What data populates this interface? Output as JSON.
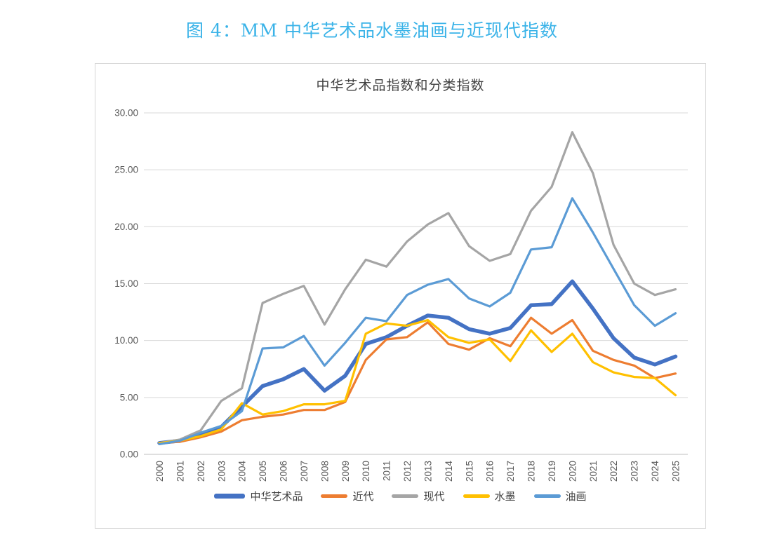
{
  "figure": {
    "caption": "图 4：MM 中华艺术品水墨油画与近现代指数",
    "caption_color": "#3ab3e8"
  },
  "chart": {
    "title": "中华艺术品指数和分类指数",
    "title_color": "#404040",
    "axis_text_color": "#595959",
    "gridline_color": "#d9d9d9",
    "axis_line_color": "#bfbfbf",
    "border_color": "#d6d6d6",
    "background": "#ffffff"
  },
  "chart_data": {
    "type": "line",
    "title": "中华艺术品指数和分类指数",
    "x": [
      "2000",
      "2001",
      "2002",
      "2003",
      "2004",
      "2005",
      "2006",
      "2007",
      "2008",
      "2009",
      "2010",
      "2011",
      "2012",
      "2013",
      "2014",
      "2015",
      "2016",
      "2017",
      "2018",
      "2019",
      "2020",
      "2021",
      "2022",
      "2023",
      "2024",
      "2025"
    ],
    "ylim": [
      0,
      30
    ],
    "ytick_step": 5,
    "ytick_labels": [
      "0.00",
      "5.00",
      "10.00",
      "15.00",
      "20.00",
      "25.00",
      "30.00"
    ],
    "grid": true,
    "legend_position": "bottom",
    "series": [
      {
        "name": "中华艺术品",
        "color": "#4472C4",
        "line_width": 5.5,
        "values": [
          1.0,
          1.2,
          1.8,
          2.4,
          4.2,
          6.0,
          6.6,
          7.5,
          5.6,
          6.9,
          9.7,
          10.3,
          11.3,
          12.2,
          12.0,
          11.0,
          10.6,
          11.1,
          13.1,
          13.2,
          15.2,
          12.8,
          10.2,
          8.5,
          7.9,
          8.6
        ]
      },
      {
        "name": "近代",
        "color": "#ED7D31",
        "line_width": 3.2,
        "values": [
          1.0,
          1.1,
          1.5,
          2.0,
          3.0,
          3.3,
          3.5,
          3.9,
          3.9,
          4.6,
          8.3,
          10.1,
          10.3,
          11.6,
          9.7,
          9.2,
          10.2,
          9.5,
          12.0,
          10.6,
          11.8,
          9.1,
          8.3,
          7.8,
          6.7,
          7.1
        ]
      },
      {
        "name": "现代",
        "color": "#A5A5A5",
        "line_width": 3.2,
        "values": [
          1.0,
          1.3,
          2.1,
          4.7,
          5.8,
          13.3,
          14.1,
          14.8,
          11.4,
          14.5,
          17.1,
          16.5,
          18.7,
          20.2,
          21.2,
          18.3,
          17.0,
          17.6,
          21.4,
          23.5,
          28.3,
          24.7,
          18.4,
          15.0,
          14.0,
          14.5
        ]
      },
      {
        "name": "水墨",
        "color": "#FFC000",
        "line_width": 3.2,
        "values": [
          1.0,
          1.2,
          1.6,
          2.2,
          4.5,
          3.5,
          3.8,
          4.4,
          4.4,
          4.7,
          10.6,
          11.5,
          11.3,
          11.8,
          10.3,
          9.8,
          10.1,
          8.2,
          10.9,
          9.0,
          10.6,
          8.1,
          7.2,
          6.8,
          6.7,
          5.2
        ]
      },
      {
        "name": "油画",
        "color": "#5B9BD5",
        "line_width": 3.2,
        "values": [
          0.9,
          1.2,
          1.9,
          2.5,
          3.8,
          9.3,
          9.4,
          10.4,
          7.8,
          9.8,
          12.0,
          11.7,
          14.0,
          14.9,
          15.4,
          13.7,
          13.0,
          14.2,
          18.0,
          18.2,
          22.5,
          19.5,
          16.3,
          13.1,
          11.3,
          12.4
        ]
      }
    ]
  }
}
